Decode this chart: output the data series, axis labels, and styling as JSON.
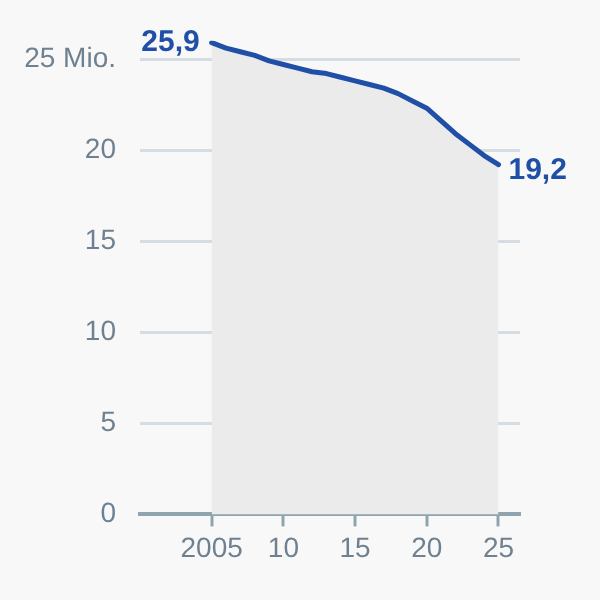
{
  "chart_data": {
    "type": "area",
    "x": [
      2005,
      2006,
      2007,
      2008,
      2009,
      2010,
      2011,
      2012,
      2013,
      2014,
      2015,
      2016,
      2017,
      2018,
      2019,
      2020,
      2021,
      2022,
      2023,
      2024,
      2025
    ],
    "series": [
      {
        "color": "#1f4fa6",
        "values": [
          25.9,
          25.6,
          25.4,
          25.2,
          24.9,
          24.7,
          24.5,
          24.3,
          24.2,
          24.0,
          23.8,
          23.6,
          23.4,
          23.1,
          22.7,
          22.3,
          21.6,
          20.9,
          20.3,
          19.7,
          19.2
        ],
        "value_labels": [
          "25,9",
          null,
          null,
          null,
          null,
          null,
          null,
          null,
          null,
          null,
          null,
          null,
          null,
          null,
          null,
          null,
          null,
          null,
          null,
          null,
          "19,2"
        ]
      }
    ],
    "xlim": [
      2000,
      2026.5
    ],
    "xticks": [
      2005,
      {
        "value": 2010,
        "label": "10"
      },
      {
        "value": 2015,
        "label": "15"
      },
      {
        "value": 2020,
        "label": "20"
      },
      {
        "value": 2025,
        "label": "25"
      }
    ],
    "ylim": [
      0,
      26
    ],
    "yticks": [
      0,
      5,
      10,
      15,
      20,
      {
        "value": 25,
        "label": "25 Mio."
      }
    ],
    "grid": "y",
    "legend": false,
    "marker": "none"
  }
}
